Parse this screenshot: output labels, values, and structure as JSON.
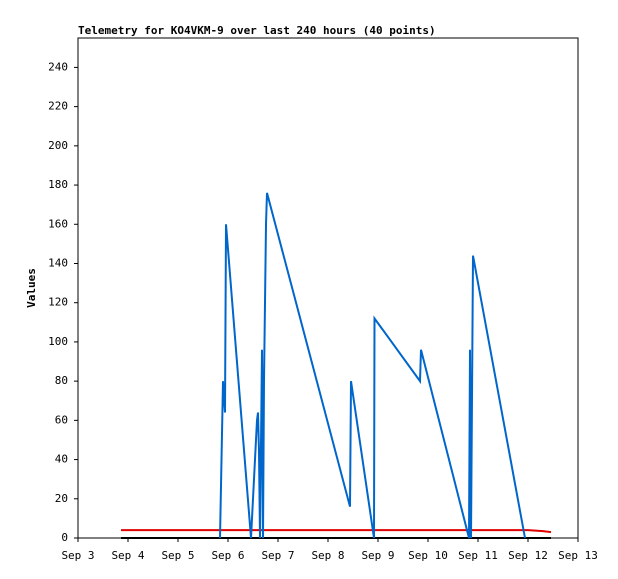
{
  "chart_data": {
    "type": "line",
    "title": "Telemetry for KO4VKM-9 over last 240 hours (40 points)",
    "y_label": "Values",
    "xlim": [
      3,
      13
    ],
    "xticks": [
      {
        "value": 3,
        "label": "Sep 3"
      },
      {
        "value": 4,
        "label": "Sep 4"
      },
      {
        "value": 5,
        "label": "Sep 5"
      },
      {
        "value": 6,
        "label": "Sep 6"
      },
      {
        "value": 7,
        "label": "Sep 7"
      },
      {
        "value": 8,
        "label": "Sep 8"
      },
      {
        "value": 9,
        "label": "Sep 9"
      },
      {
        "value": 10,
        "label": "Sep 10"
      },
      {
        "value": 11,
        "label": "Sep 11"
      },
      {
        "value": 12,
        "label": "Sep 12"
      },
      {
        "value": 13,
        "label": "Sep 13"
      }
    ],
    "ylim": [
      0,
      255
    ],
    "yticks": [
      0,
      20,
      40,
      60,
      80,
      100,
      120,
      140,
      160,
      180,
      200,
      220,
      240
    ],
    "series": [
      {
        "color": "#000000",
        "x": [
          3.86,
          12.46
        ],
        "values": [
          0,
          0
        ]
      },
      {
        "color": "#e00000",
        "x": [
          3.86,
          12.0,
          12.3,
          12.46
        ],
        "values": [
          4,
          4,
          3.5,
          3
        ]
      },
      {
        "color": "#0066cc",
        "x": [
          5.84,
          5.87,
          5.9,
          5.94,
          5.96,
          6.46,
          6.58,
          6.6,
          6.62,
          6.64,
          6.68,
          6.7,
          6.72,
          6.76,
          6.78,
          8.44,
          8.46,
          8.92,
          8.93,
          9.84,
          9.86,
          10.82,
          10.84,
          10.86,
          10.9,
          11.94
        ],
        "values": [
          0,
          40,
          80,
          64,
          160,
          0,
          60,
          64,
          44,
          0,
          96,
          0,
          80,
          160,
          176,
          16,
          80,
          0,
          112,
          80,
          96,
          0,
          96,
          0,
          144,
          0
        ]
      }
    ]
  }
}
